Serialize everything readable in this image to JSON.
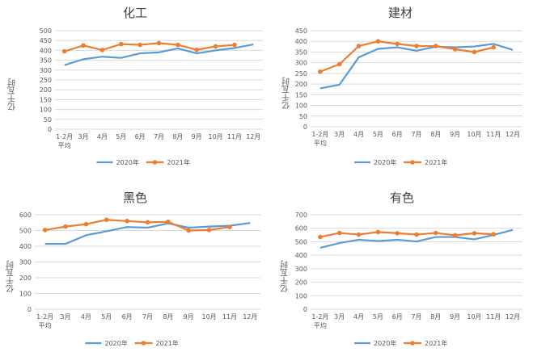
{
  "colors": {
    "series2020": "#5b9bd5",
    "series2021": "#ed7d31",
    "grid": "#d9d9d9",
    "text": "#595959"
  },
  "chart_data": [
    {
      "type": "line",
      "title": "化工",
      "ylabel": "亿千瓦时",
      "ylim": [
        0,
        500
      ],
      "ystep": 50,
      "categories": [
        "1-2月平均",
        "3月",
        "4月",
        "5月",
        "6月",
        "7月",
        "8月",
        "9月",
        "10月",
        "11月",
        "12月"
      ],
      "category_lines": [
        [
          "1-2月",
          "平均"
        ],
        [
          "3月"
        ],
        [
          "4月"
        ],
        [
          "5月"
        ],
        [
          "6月"
        ],
        [
          "7月"
        ],
        [
          "8月"
        ],
        [
          "9月"
        ],
        [
          "10月"
        ],
        [
          "11月"
        ],
        [
          "12月"
        ]
      ],
      "series": [
        {
          "name": "2020年",
          "values": [
            325,
            355,
            368,
            362,
            385,
            390,
            410,
            385,
            400,
            412,
            430
          ]
        },
        {
          "name": "2021年",
          "values": [
            395,
            425,
            402,
            432,
            428,
            437,
            428,
            403,
            420,
            428,
            null
          ]
        }
      ]
    },
    {
      "type": "line",
      "title": "建材",
      "ylabel": "亿千瓦时",
      "ylim": [
        0,
        450
      ],
      "ystep": 50,
      "categories": [
        "1-2月平均",
        "3月",
        "4月",
        "5月",
        "6月",
        "7月",
        "8月",
        "9月",
        "10月",
        "11月",
        "12月"
      ],
      "category_lines": [
        [
          "1-2月",
          "平均"
        ],
        [
          "3月"
        ],
        [
          "4月"
        ],
        [
          "5月"
        ],
        [
          "6月"
        ],
        [
          "7月"
        ],
        [
          "8月"
        ],
        [
          "9月"
        ],
        [
          "10月"
        ],
        [
          "11月"
        ],
        [
          "12月"
        ]
      ],
      "series": [
        {
          "name": "2020年",
          "values": [
            180,
            197,
            325,
            365,
            372,
            356,
            375,
            372,
            376,
            388,
            360
          ]
        },
        {
          "name": "2021年",
          "values": [
            258,
            293,
            378,
            400,
            388,
            378,
            378,
            363,
            350,
            372,
            null
          ]
        }
      ]
    },
    {
      "type": "line",
      "title": "黑色",
      "ylabel": "亿千瓦时",
      "ylim": [
        0,
        600
      ],
      "ystep": 100,
      "categories": [
        "1-2月平均",
        "3月",
        "4月",
        "5月",
        "6月",
        "7月",
        "8月",
        "9月",
        "10月",
        "11月",
        "12月"
      ],
      "category_lines": [
        [
          "1-2月",
          "平均"
        ],
        [
          "3月"
        ],
        [
          "4月"
        ],
        [
          "5月"
        ],
        [
          "6月"
        ],
        [
          "7月"
        ],
        [
          "8月"
        ],
        [
          "9月"
        ],
        [
          "10月"
        ],
        [
          "11月"
        ],
        [
          "12月"
        ]
      ],
      "series": [
        {
          "name": "2020年",
          "values": [
            415,
            415,
            470,
            495,
            522,
            518,
            545,
            518,
            525,
            530,
            548
          ]
        },
        {
          "name": "2021年",
          "values": [
            503,
            525,
            540,
            568,
            560,
            552,
            555,
            500,
            503,
            522,
            null
          ]
        }
      ]
    },
    {
      "type": "line",
      "title": "有色",
      "ylabel": "亿千瓦时",
      "ylim": [
        0,
        700
      ],
      "ystep": 100,
      "categories": [
        "1-2月平均",
        "3月",
        "4月",
        "5月",
        "6月",
        "7月",
        "8月",
        "9月",
        "10月",
        "11月",
        "12月"
      ],
      "category_lines": [
        [
          "1-2月",
          "平均"
        ],
        [
          "3月"
        ],
        [
          "4月"
        ],
        [
          "5月"
        ],
        [
          "6月"
        ],
        [
          "7月"
        ],
        [
          "8月"
        ],
        [
          "9月"
        ],
        [
          "10月"
        ],
        [
          "11月"
        ],
        [
          "12月"
        ]
      ],
      "series": [
        {
          "name": "2020年",
          "values": [
            455,
            490,
            515,
            505,
            515,
            502,
            535,
            535,
            518,
            550,
            588
          ]
        },
        {
          "name": "2021年",
          "values": [
            535,
            565,
            553,
            572,
            563,
            553,
            565,
            548,
            563,
            555,
            null
          ]
        }
      ]
    }
  ]
}
